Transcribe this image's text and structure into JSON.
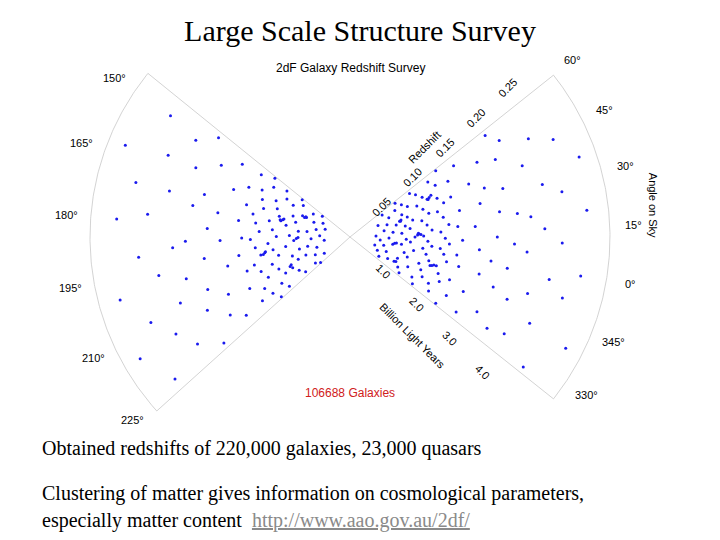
{
  "title": "Large Scale Structure Survey",
  "chart_data": {
    "type": "scatter",
    "title": "2dF Galaxy Redshift Survey",
    "count_label": "106688 Galaxies",
    "color": "#1a1aee",
    "radial_label": "Redshift",
    "rlim": [
      0,
      0.3
    ],
    "rticks": [
      0.05,
      {
        "value": 0.1,
        "label": "0.10"
      },
      0.15,
      {
        "value": 0.2,
        "label": "0.20"
      },
      0.25
    ],
    "distance_label": "Billion Light Years",
    "distance_lim": [
      0,
      5.5
    ],
    "distance_ticks": [
      {
        "value": 1,
        "label": "1.0"
      },
      {
        "value": 2,
        "label": "2.0"
      },
      {
        "value": 3,
        "label": "3.0"
      },
      {
        "value": 4,
        "label": "4.0"
      }
    ],
    "angle_label": "Angle on Sky",
    "wedges": [
      {
        "ralim": [
          -36,
          60
        ],
        "raticks": [
          {
            "value": 60,
            "label": "60°"
          },
          {
            "value": 45,
            "label": "45°"
          },
          {
            "value": 30,
            "label": "30°"
          },
          {
            "value": 15,
            "label": "15°"
          },
          {
            "value": 0,
            "label": "0°"
          },
          {
            "value": -15,
            "label": "345°"
          },
          {
            "value": -30,
            "label": "330°"
          }
        ],
        "points": [
          [
            -30,
            0.04
          ],
          [
            -25,
            0.05
          ],
          [
            -20,
            0.035
          ],
          [
            -15,
            0.045
          ],
          [
            -10,
            0.03
          ],
          [
            -5,
            0.04
          ],
          [
            0,
            0.05
          ],
          [
            5,
            0.035
          ],
          [
            10,
            0.045
          ],
          [
            15,
            0.03
          ],
          [
            20,
            0.05
          ],
          [
            25,
            0.04
          ],
          [
            30,
            0.055
          ],
          [
            35,
            0.045
          ],
          [
            40,
            0.035
          ],
          [
            45,
            0.05
          ],
          [
            50,
            0.06
          ],
          [
            55,
            0.045
          ],
          [
            -33,
            0.07
          ],
          [
            -28,
            0.065
          ],
          [
            -22,
            0.075
          ],
          [
            -18,
            0.06
          ],
          [
            -12,
            0.07
          ],
          [
            -8,
            0.065
          ],
          [
            -3,
            0.075
          ],
          [
            2,
            0.06
          ],
          [
            6,
            0.07
          ],
          [
            9,
            0.065
          ],
          [
            12,
            0.075
          ],
          [
            17,
            0.06
          ],
          [
            22,
            0.07
          ],
          [
            26,
            0.065
          ],
          [
            31,
            0.075
          ],
          [
            36,
            0.07
          ],
          [
            41,
            0.065
          ],
          [
            47,
            0.075
          ],
          [
            52,
            0.07
          ],
          [
            58,
            0.065
          ],
          [
            -34,
            0.09
          ],
          [
            -29,
            0.085
          ],
          [
            -24,
            0.095
          ],
          [
            -19,
            0.09
          ],
          [
            -14,
            0.085
          ],
          [
            -9,
            0.095
          ],
          [
            -4,
            0.09
          ],
          [
            1,
            0.085
          ],
          [
            4,
            0.095
          ],
          [
            8,
            0.09
          ],
          [
            13,
            0.085
          ],
          [
            18,
            0.095
          ],
          [
            23,
            0.09
          ],
          [
            28,
            0.085
          ],
          [
            33,
            0.095
          ],
          [
            38,
            0.09
          ],
          [
            43,
            0.085
          ],
          [
            48,
            0.095
          ],
          [
            53,
            0.09
          ],
          [
            57,
            0.085
          ],
          [
            -31,
            0.11
          ],
          [
            -26,
            0.105
          ],
          [
            -21,
            0.115
          ],
          [
            -16,
            0.11
          ],
          [
            -11,
            0.105
          ],
          [
            -6,
            0.115
          ],
          [
            -1,
            0.11
          ],
          [
            3,
            0.105
          ],
          [
            7,
            0.115
          ],
          [
            11,
            0.11
          ],
          [
            16,
            0.105
          ],
          [
            21,
            0.115
          ],
          [
            27,
            0.11
          ],
          [
            32,
            0.105
          ],
          [
            37,
            0.115
          ],
          [
            42,
            0.11
          ],
          [
            46,
            0.105
          ],
          [
            51,
            0.115
          ],
          [
            56,
            0.11
          ],
          [
            -35,
            0.125
          ],
          [
            -27,
            0.13
          ],
          [
            -17,
            0.125
          ],
          [
            -7,
            0.13
          ],
          [
            0,
            0.125
          ],
          [
            10,
            0.13
          ],
          [
            19,
            0.125
          ],
          [
            29,
            0.13
          ],
          [
            39,
            0.125
          ],
          [
            49,
            0.13
          ],
          [
            59,
            0.125
          ],
          [
            14,
            0.078
          ],
          [
            15,
            0.08
          ],
          [
            16,
            0.079
          ],
          [
            14.5,
            0.082
          ],
          [
            -12,
            0.1
          ],
          [
            -11,
            0.102
          ],
          [
            -12.5,
            0.098
          ],
          [
            34,
            0.06
          ],
          [
            35,
            0.062
          ],
          [
            33.5,
            0.061
          ],
          [
            44,
            0.1
          ],
          [
            45,
            0.102
          ],
          [
            44.5,
            0.099
          ],
          [
            2,
            0.052
          ],
          [
            3,
            0.054
          ],
          [
            -24,
            0.058
          ],
          [
            -23,
            0.06
          ],
          [
            -32,
            0.15
          ],
          [
            -20,
            0.145
          ],
          [
            -8,
            0.155
          ],
          [
            5,
            0.15
          ],
          [
            18,
            0.145
          ],
          [
            30,
            0.155
          ],
          [
            42,
            0.15
          ],
          [
            55,
            0.145
          ],
          [
            -26,
            0.17
          ],
          [
            -12,
            0.175
          ],
          [
            0,
            0.165
          ],
          [
            12,
            0.17
          ],
          [
            24,
            0.175
          ],
          [
            37,
            0.165
          ],
          [
            50,
            0.17
          ],
          [
            -30,
            0.19
          ],
          [
            -15,
            0.195
          ],
          [
            -2,
            0.185
          ],
          [
            9,
            0.19
          ],
          [
            22,
            0.195
          ],
          [
            34,
            0.185
          ],
          [
            47,
            0.19
          ],
          [
            58,
            0.195
          ],
          [
            -28,
            0.21
          ],
          [
            -10,
            0.215
          ],
          [
            6,
            0.205
          ],
          [
            20,
            0.21
          ],
          [
            40,
            0.215
          ],
          [
            53,
            0.205
          ],
          [
            -20,
            0.23
          ],
          [
            -3,
            0.235
          ],
          [
            15,
            0.225
          ],
          [
            31,
            0.23
          ],
          [
            48,
            0.235
          ],
          [
            -34,
            0.25
          ],
          [
            -8,
            0.255
          ],
          [
            10,
            0.245
          ],
          [
            27,
            0.25
          ],
          [
            44,
            0.26
          ],
          [
            0,
            0.27
          ],
          [
            20,
            0.275
          ],
          [
            -22,
            0.28
          ],
          [
            36,
            0.28
          ]
        ]
      },
      {
        "ralim": [
          145,
          227
        ],
        "raticks": [
          {
            "value": 150,
            "label": "150°"
          },
          {
            "value": 165,
            "label": "165°"
          },
          {
            "value": 180,
            "label": "180°"
          },
          {
            "value": 195,
            "label": "195°"
          },
          {
            "value": 210,
            "label": "210°"
          },
          {
            "value": 225,
            "label": "225°"
          }
        ],
        "points": [
          [
            147,
            0.04
          ],
          [
            152,
            0.05
          ],
          [
            157,
            0.035
          ],
          [
            162,
            0.045
          ],
          [
            167,
            0.03
          ],
          [
            172,
            0.04
          ],
          [
            177,
            0.05
          ],
          [
            182,
            0.035
          ],
          [
            187,
            0.045
          ],
          [
            192,
            0.03
          ],
          [
            197,
            0.05
          ],
          [
            202,
            0.04
          ],
          [
            207,
            0.055
          ],
          [
            212,
            0.045
          ],
          [
            217,
            0.035
          ],
          [
            222,
            0.05
          ],
          [
            226,
            0.045
          ],
          [
            146,
            0.07
          ],
          [
            150,
            0.065
          ],
          [
            155,
            0.075
          ],
          [
            160,
            0.06
          ],
          [
            164,
            0.07
          ],
          [
            169,
            0.065
          ],
          [
            174,
            0.075
          ],
          [
            178,
            0.06
          ],
          [
            183,
            0.07
          ],
          [
            188,
            0.065
          ],
          [
            193,
            0.075
          ],
          [
            198,
            0.06
          ],
          [
            203,
            0.07
          ],
          [
            208,
            0.065
          ],
          [
            213,
            0.075
          ],
          [
            218,
            0.07
          ],
          [
            223,
            0.065
          ],
          [
            148,
            0.09
          ],
          [
            153,
            0.085
          ],
          [
            158,
            0.095
          ],
          [
            163,
            0.09
          ],
          [
            168,
            0.085
          ],
          [
            173,
            0.095
          ],
          [
            179,
            0.09
          ],
          [
            184,
            0.085
          ],
          [
            189,
            0.095
          ],
          [
            194,
            0.09
          ],
          [
            199,
            0.085
          ],
          [
            204,
            0.095
          ],
          [
            209,
            0.09
          ],
          [
            214,
            0.085
          ],
          [
            219,
            0.095
          ],
          [
            224,
            0.09
          ],
          [
            146,
            0.11
          ],
          [
            151,
            0.105
          ],
          [
            156,
            0.115
          ],
          [
            161,
            0.11
          ],
          [
            166,
            0.105
          ],
          [
            171,
            0.115
          ],
          [
            176,
            0.11
          ],
          [
            181,
            0.105
          ],
          [
            186,
            0.115
          ],
          [
            191,
            0.11
          ],
          [
            196,
            0.105
          ],
          [
            201,
            0.115
          ],
          [
            206,
            0.11
          ],
          [
            211,
            0.105
          ],
          [
            216,
            0.115
          ],
          [
            221,
            0.11
          ],
          [
            226,
            0.105
          ],
          [
            149,
            0.125
          ],
          [
            158,
            0.13
          ],
          [
            167,
            0.125
          ],
          [
            176,
            0.13
          ],
          [
            185,
            0.125
          ],
          [
            194,
            0.13
          ],
          [
            203,
            0.125
          ],
          [
            212,
            0.13
          ],
          [
            221,
            0.125
          ],
          [
            170,
            0.08
          ],
          [
            171,
            0.082
          ],
          [
            169,
            0.079
          ],
          [
            170.5,
            0.083
          ],
          [
            195,
            0.1
          ],
          [
            196,
            0.102
          ],
          [
            194.5,
            0.099
          ],
          [
            160,
            0.055
          ],
          [
            161,
            0.057
          ],
          [
            159.5,
            0.056
          ],
          [
            210,
            0.075
          ],
          [
            211,
            0.077
          ],
          [
            185,
            0.06
          ],
          [
            186,
            0.062
          ],
          [
            150,
            0.15
          ],
          [
            162,
            0.145
          ],
          [
            174,
            0.155
          ],
          [
            186,
            0.15
          ],
          [
            198,
            0.145
          ],
          [
            210,
            0.155
          ],
          [
            222,
            0.15
          ],
          [
            155,
            0.17
          ],
          [
            168,
            0.175
          ],
          [
            181,
            0.165
          ],
          [
            193,
            0.17
          ],
          [
            205,
            0.175
          ],
          [
            218,
            0.165
          ],
          [
            147,
            0.19
          ],
          [
            160,
            0.195
          ],
          [
            173,
            0.185
          ],
          [
            186,
            0.19
          ],
          [
            199,
            0.195
          ],
          [
            212,
            0.185
          ],
          [
            225,
            0.19
          ],
          [
            152,
            0.21
          ],
          [
            170,
            0.215
          ],
          [
            188,
            0.205
          ],
          [
            206,
            0.21
          ],
          [
            220,
            0.215
          ],
          [
            160,
            0.23
          ],
          [
            178,
            0.235
          ],
          [
            196,
            0.225
          ],
          [
            214,
            0.23
          ],
          [
            150,
            0.25
          ],
          [
            170,
            0.255
          ],
          [
            190,
            0.245
          ],
          [
            208,
            0.25
          ],
          [
            224,
            0.26
          ],
          [
            180,
            0.27
          ],
          [
            200,
            0.275
          ],
          [
            162,
            0.28
          ],
          [
            215,
            0.28
          ]
        ]
      }
    ]
  },
  "text": {
    "paragraphs": [
      [
        "Obtained redshifts of 220,000 galaxies, 23,000 quasars"
      ],
      [
        "Clustering of matter gives information on cosmological parameters,",
        "especially matter content"
      ]
    ],
    "link": "http://www.aao.gov.au/2df/"
  }
}
